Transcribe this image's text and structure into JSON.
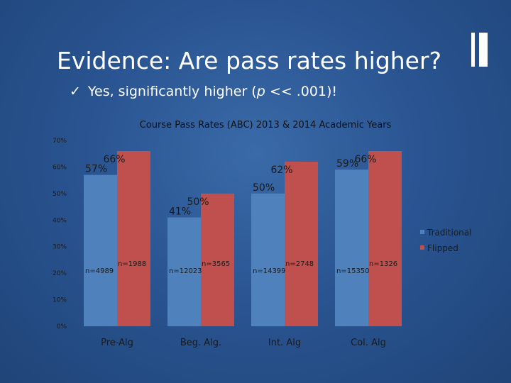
{
  "slide": {
    "title": "Evidence: Are pass rates higher?",
    "subtitle_check": "✓",
    "subtitle_pre": "Yes, significantly higher (",
    "subtitle_p": "p",
    "subtitle_post": " << .001)!"
  },
  "colors": {
    "traditional": "#4f81bd",
    "flipped": "#c0504d",
    "background": "#2a5592"
  },
  "chart_data": {
    "type": "bar",
    "title": "Course Pass Rates (ABC) 2013 & 2014 Academic Years",
    "categories": [
      "Pre-Alg",
      "Beg. Alg.",
      "Int. Alg",
      "Col. Alg"
    ],
    "series": [
      {
        "name": "Traditional",
        "values": [
          57,
          41,
          50,
          59
        ],
        "value_labels": [
          "57%",
          "41%",
          "50%",
          "59%"
        ],
        "n_labels": [
          "n=4989",
          "n=12023",
          "n=14399",
          "n=15350"
        ]
      },
      {
        "name": "Flipped",
        "values": [
          66,
          50,
          62,
          66
        ],
        "value_labels": [
          "66%",
          "50%",
          "62%",
          "66%"
        ],
        "n_labels": [
          "n=1988",
          "n=3565",
          "n=2748",
          "n=1326"
        ]
      }
    ],
    "ylim": [
      0,
      70
    ],
    "yticks": [
      0,
      10,
      20,
      30,
      40,
      50,
      60,
      70
    ],
    "ytick_labels": [
      "0%",
      "10%",
      "20%",
      "30%",
      "40%",
      "50%",
      "60%",
      "70%"
    ],
    "xlabel": "",
    "ylabel": "",
    "legend_position": "right",
    "grid": false
  }
}
